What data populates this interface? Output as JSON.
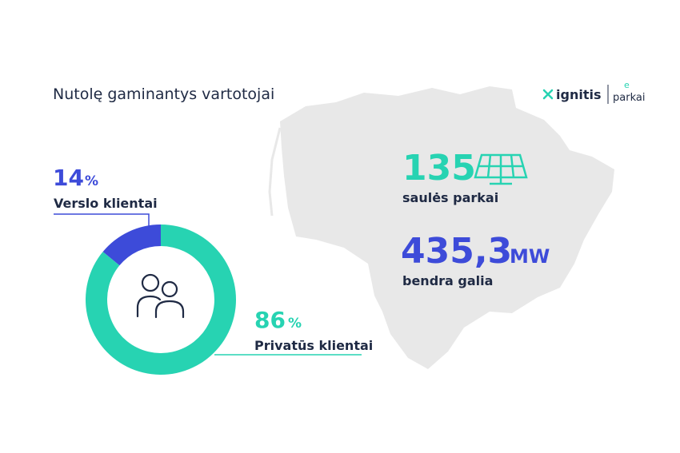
{
  "chart_data": {
    "type": "pie",
    "donut": true,
    "title": "Nutolę gaminantys vartotojai",
    "categories": [
      "Verslo klientai",
      "Privatūs klientai"
    ],
    "values": [
      14,
      86
    ],
    "unit": "%",
    "colors": [
      "#3d4bd9",
      "#27d3b2"
    ]
  },
  "stats": [
    {
      "value": 135,
      "label": "saulės parkai",
      "color": "#27d3b2"
    },
    {
      "value": 435.3,
      "value_label": "435,3",
      "unit": "MW",
      "label": "bendra galia",
      "color": "#3d4bd9"
    }
  ],
  "logo": {
    "brand": "ignitis",
    "sub_top": "e",
    "sub": "parkai"
  }
}
